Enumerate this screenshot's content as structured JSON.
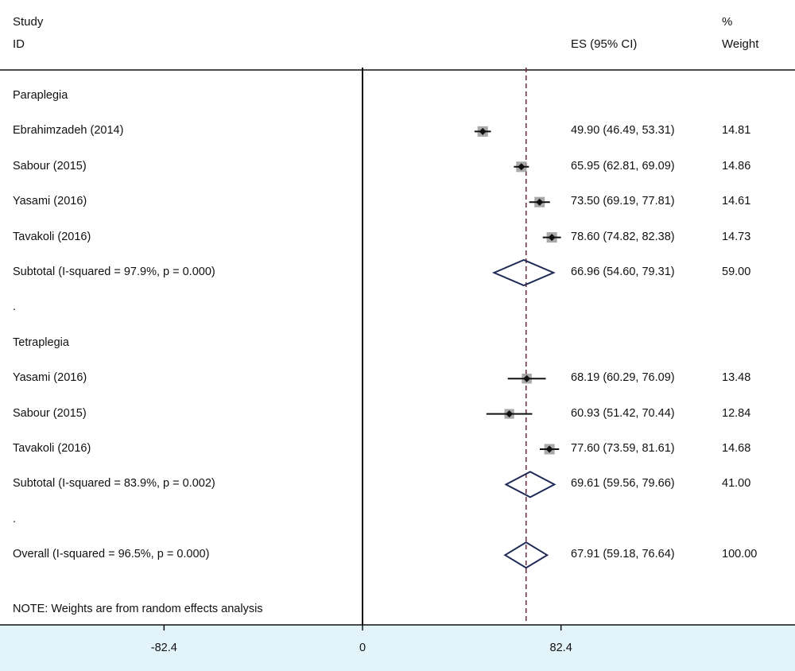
{
  "header": {
    "study_line1": "Study",
    "study_line2": "ID",
    "es": "ES (95% CI)",
    "weight_line1": "%",
    "weight_line2": "Weight"
  },
  "note": "NOTE: Weights are from random effects analysis",
  "colors": {
    "line": "#111111",
    "ref_line": "#6b2a3a",
    "marker": "#111111",
    "box": "#9a9a9a",
    "diamond": "#1e2a55",
    "axis_band": "#e3f3fa"
  },
  "chart_data": {
    "type": "forest",
    "xlim": [
      -120,
      120
    ],
    "ticks": [
      {
        "value": -82.4,
        "label": "-82.4"
      },
      {
        "value": 0,
        "label": "0"
      },
      {
        "value": 82.4,
        "label": "82.4"
      }
    ],
    "null_line": 0,
    "reference_line": 67.91,
    "rows": [
      {
        "kind": "group",
        "label": "Paraplegia"
      },
      {
        "kind": "study",
        "label": "Ebrahimzadeh (2014)",
        "es": 49.9,
        "lo": 46.49,
        "hi": 53.31,
        "es_text": "49.90 (46.49, 53.31)",
        "weight": 14.81,
        "weight_text": "14.81"
      },
      {
        "kind": "study",
        "label": "Sabour (2015)",
        "es": 65.95,
        "lo": 62.81,
        "hi": 69.09,
        "es_text": "65.95 (62.81, 69.09)",
        "weight": 14.86,
        "weight_text": "14.86"
      },
      {
        "kind": "study",
        "label": "Yasami (2016)",
        "es": 73.5,
        "lo": 69.19,
        "hi": 77.81,
        "es_text": "73.50 (69.19, 77.81)",
        "weight": 14.61,
        "weight_text": "14.61"
      },
      {
        "kind": "study",
        "label": "Tavakoli (2016)",
        "es": 78.6,
        "lo": 74.82,
        "hi": 82.38,
        "es_text": "78.60 (74.82, 82.38)",
        "weight": 14.73,
        "weight_text": "14.73"
      },
      {
        "kind": "subtotal",
        "label": "Subtotal  (I-squared = 97.9%, p = 0.000)",
        "es": 66.96,
        "lo": 54.6,
        "hi": 79.31,
        "es_text": "66.96 (54.60, 79.31)",
        "weight": 59.0,
        "weight_text": "59.00"
      },
      {
        "kind": "spacer",
        "label": "."
      },
      {
        "kind": "group",
        "label": "Tetraplegia"
      },
      {
        "kind": "study",
        "label": "Yasami (2016)",
        "es": 68.19,
        "lo": 60.29,
        "hi": 76.09,
        "es_text": "68.19 (60.29, 76.09)",
        "weight": 13.48,
        "weight_text": "13.48"
      },
      {
        "kind": "study",
        "label": "Sabour (2015)",
        "es": 60.93,
        "lo": 51.42,
        "hi": 70.44,
        "es_text": "60.93 (51.42, 70.44)",
        "weight": 12.84,
        "weight_text": "12.84"
      },
      {
        "kind": "study",
        "label": "Tavakoli (2016)",
        "es": 77.6,
        "lo": 73.59,
        "hi": 81.61,
        "es_text": "77.60 (73.59, 81.61)",
        "weight": 14.68,
        "weight_text": "14.68"
      },
      {
        "kind": "subtotal",
        "label": "Subtotal  (I-squared = 83.9%, p = 0.002)",
        "es": 69.61,
        "lo": 59.56,
        "hi": 79.66,
        "es_text": "69.61 (59.56, 79.66)",
        "weight": 41.0,
        "weight_text": "41.00"
      },
      {
        "kind": "spacer",
        "label": "."
      },
      {
        "kind": "overall",
        "label": "Overall  (I-squared = 96.5%, p = 0.000)",
        "es": 67.91,
        "lo": 59.18,
        "hi": 76.64,
        "es_text": "67.91 (59.18, 76.64)",
        "weight": 100.0,
        "weight_text": "100.00"
      }
    ]
  }
}
